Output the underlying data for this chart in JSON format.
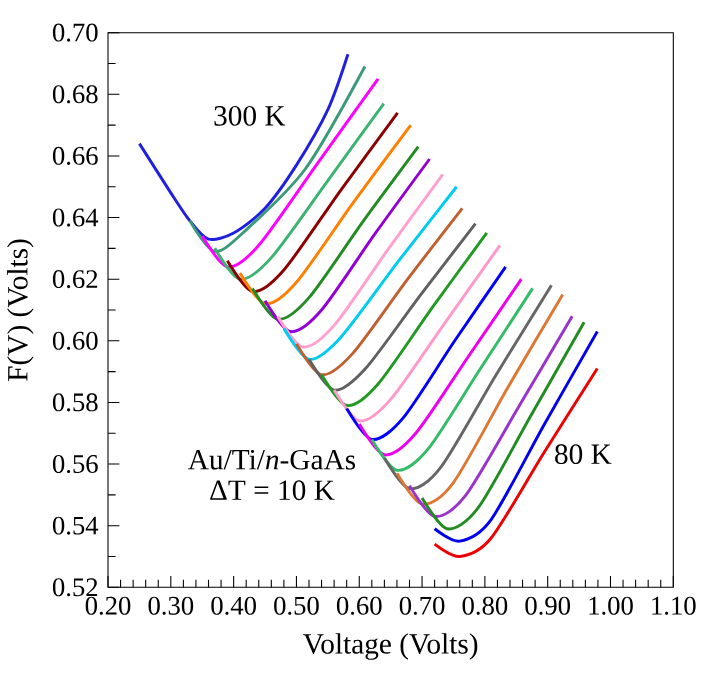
{
  "chart_data": {
    "type": "line",
    "xlabel": "Voltage (Volts)",
    "ylabel": "F(V) (Volts)",
    "xlim": [
      0.2,
      1.1
    ],
    "ylim": [
      0.52,
      0.7
    ],
    "xticks": [
      {
        "value": 0.2,
        "label": "0.20"
      },
      {
        "value": 0.3,
        "label": "0.30"
      },
      {
        "value": 0.4,
        "label": "0.40"
      },
      {
        "value": 0.5,
        "label": "0.50"
      },
      {
        "value": 0.6,
        "label": "0.60"
      },
      {
        "value": 0.7,
        "label": "0.70"
      },
      {
        "value": 0.8,
        "label": "0.80"
      },
      {
        "value": 0.9,
        "label": "0.90"
      },
      {
        "value": 1.0,
        "label": "1.00"
      },
      {
        "value": 1.1,
        "label": "1.10"
      }
    ],
    "yticks": [
      {
        "value": 0.52,
        "label": "0.52"
      },
      {
        "value": 0.54,
        "label": "0.54"
      },
      {
        "value": 0.56,
        "label": "0.56"
      },
      {
        "value": 0.58,
        "label": "0.58"
      },
      {
        "value": 0.6,
        "label": "0.60"
      },
      {
        "value": 0.62,
        "label": "0.62"
      },
      {
        "value": 0.64,
        "label": "0.64"
      },
      {
        "value": 0.66,
        "label": "0.66"
      },
      {
        "value": 0.68,
        "label": "0.68"
      },
      {
        "value": 0.7,
        "label": "0.70"
      }
    ],
    "grid": false,
    "series": [
      {
        "color": "#1f1fe0",
        "x": [
          0.25,
          0.3,
          0.33,
          0.36,
          0.4,
          0.45,
          0.5,
          0.55,
          0.582
        ],
        "values": [
          0.664,
          0.648,
          0.639,
          0.633,
          0.635,
          0.643,
          0.657,
          0.675,
          0.693
        ]
      },
      {
        "color": "#3a9a7a",
        "x": [
          0.33,
          0.37,
          0.42,
          0.515,
          0.609
        ],
        "values": [
          0.639,
          0.629,
          0.636,
          0.656,
          0.689
        ]
      },
      {
        "color": "#ff00ff",
        "x": [
          0.35,
          0.39,
          0.44,
          0.535,
          0.63
        ],
        "values": [
          0.634,
          0.624,
          0.631,
          0.658,
          0.685
        ]
      },
      {
        "color": "#3cb371",
        "x": [
          0.37,
          0.41,
          0.46,
          0.55,
          0.639
        ],
        "values": [
          0.63,
          0.62,
          0.627,
          0.652,
          0.677
        ]
      },
      {
        "color": "#8b0000",
        "x": [
          0.39,
          0.43,
          0.48,
          0.571,
          0.661
        ],
        "values": [
          0.626,
          0.616,
          0.623,
          0.649,
          0.674
        ]
      },
      {
        "color": "#ff7f00",
        "x": [
          0.41,
          0.45,
          0.5,
          0.591,
          0.682
        ],
        "values": [
          0.622,
          0.612,
          0.619,
          0.645,
          0.67
        ]
      },
      {
        "color": "#228b22",
        "x": [
          0.43,
          0.47,
          0.52,
          0.607,
          0.694
        ],
        "values": [
          0.617,
          0.607,
          0.614,
          0.639,
          0.663
        ]
      },
      {
        "color": "#9400d3",
        "x": [
          0.45,
          0.49,
          0.54,
          0.626,
          0.712
        ],
        "values": [
          0.613,
          0.603,
          0.61,
          0.635,
          0.659
        ]
      },
      {
        "color": "#ffa0d0",
        "x": [
          0.47,
          0.51,
          0.56,
          0.647,
          0.733
        ],
        "values": [
          0.608,
          0.598,
          0.605,
          0.63,
          0.654
        ]
      },
      {
        "color": "#00ccee",
        "x": [
          0.48,
          0.52,
          0.57,
          0.663,
          0.755
        ],
        "values": [
          0.604,
          0.594,
          0.601,
          0.626,
          0.65
        ]
      },
      {
        "color": "#c06030",
        "x": [
          0.5,
          0.54,
          0.59,
          0.677,
          0.764
        ],
        "values": [
          0.599,
          0.589,
          0.596,
          0.62,
          0.643
        ]
      },
      {
        "color": "#606060",
        "x": [
          0.52,
          0.56,
          0.61,
          0.698,
          0.785
        ],
        "values": [
          0.594,
          0.584,
          0.591,
          0.615,
          0.638
        ]
      },
      {
        "color": "#229922",
        "x": [
          0.54,
          0.58,
          0.63,
          0.717,
          0.803
        ],
        "values": [
          0.589,
          0.579,
          0.586,
          0.611,
          0.635
        ]
      },
      {
        "color": "#ff99cc",
        "x": [
          0.56,
          0.6,
          0.65,
          0.737,
          0.824
        ],
        "values": [
          0.584,
          0.574,
          0.581,
          0.606,
          0.631
        ]
      },
      {
        "color": "#0000ff",
        "x": [
          0.58,
          0.62,
          0.67,
          0.752,
          0.833
        ],
        "values": [
          0.578,
          0.568,
          0.575,
          0.6,
          0.624
        ]
      },
      {
        "color": "#ee00ee",
        "x": [
          0.6,
          0.64,
          0.69,
          0.774,
          0.858
        ],
        "values": [
          0.573,
          0.563,
          0.57,
          0.595,
          0.62
        ]
      },
      {
        "color": "#33bb66",
        "x": [
          0.62,
          0.66,
          0.71,
          0.793,
          0.876
        ],
        "values": [
          0.568,
          0.558,
          0.565,
          0.591,
          0.617
        ]
      },
      {
        "color": "#666666",
        "x": [
          0.64,
          0.68,
          0.73,
          0.818,
          0.906
        ],
        "values": [
          0.562,
          0.552,
          0.559,
          0.589,
          0.618
        ]
      },
      {
        "color": "#dd7733",
        "x": [
          0.66,
          0.7,
          0.75,
          0.837,
          0.924
        ],
        "values": [
          0.557,
          0.547,
          0.554,
          0.585,
          0.615
        ]
      },
      {
        "color": "#9933cc",
        "x": [
          0.68,
          0.72,
          0.77,
          0.855,
          0.939
        ],
        "values": [
          0.553,
          0.543,
          0.55,
          0.579,
          0.608
        ]
      },
      {
        "color": "#228b22",
        "x": [
          0.7,
          0.74,
          0.79,
          0.874,
          0.958
        ],
        "values": [
          0.549,
          0.539,
          0.546,
          0.576,
          0.606
        ]
      },
      {
        "color": "#0000ee",
        "x": [
          0.72,
          0.76,
          0.81,
          0.895,
          0.979
        ],
        "values": [
          0.539,
          0.535,
          0.542,
          0.573,
          0.603
        ]
      },
      {
        "color": "#ee0000",
        "x": [
          0.72,
          0.76,
          0.81,
          0.895,
          0.979
        ],
        "values": [
          0.534,
          0.53,
          0.536,
          0.564,
          0.591
        ]
      }
    ],
    "annotations": [
      "300 K",
      "80 K",
      "Au/Ti/*n*-GaAs",
      "ΔT = 10 K"
    ]
  }
}
